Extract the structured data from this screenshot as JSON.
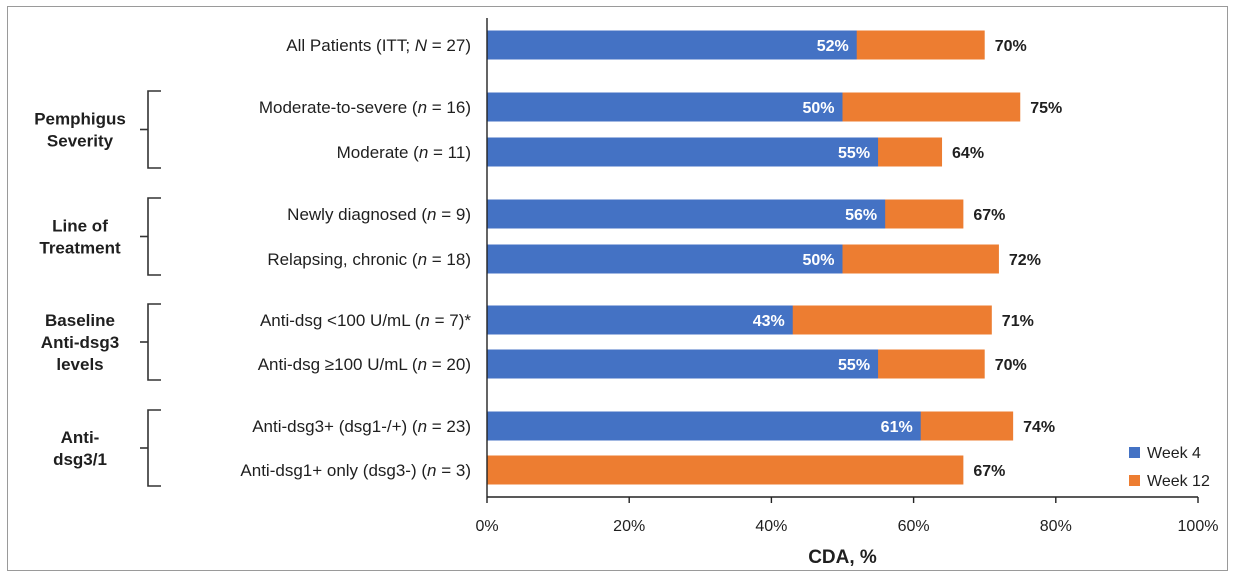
{
  "chart_data": {
    "type": "bar",
    "orientation": "horizontal",
    "xlabel": "CDA, %",
    "xlim": [
      0,
      100
    ],
    "xticks": [
      "0%",
      "20%",
      "40%",
      "60%",
      "80%",
      "100%"
    ],
    "legend_position": "bottom-right",
    "categories": [
      {
        "pre": "All Patients (ITT; ",
        "var": "N",
        "post": " = 27)"
      },
      {
        "pre": "Moderate-to-severe (",
        "var": "n",
        "post": " = 16)"
      },
      {
        "pre": "Moderate (",
        "var": "n",
        "post": " = 11)"
      },
      {
        "pre": "Newly diagnosed (",
        "var": "n",
        "post": " = 9)"
      },
      {
        "pre": "Relapsing, chronic (",
        "var": "n",
        "post": " = 18)"
      },
      {
        "pre": "Anti-dsg <100 U/mL (",
        "var": "n",
        "post": " = 7)*"
      },
      {
        "pre": "Anti-dsg ≥100 U/mL (",
        "var": "n",
        "post": " = 20)"
      },
      {
        "pre": "Anti-dsg3+ (dsg1-/+) (",
        "var": "n",
        "post": " = 23)"
      },
      {
        "pre": "Anti-dsg1+ only (dsg3-) (",
        "var": "n",
        "post": " = 3)"
      }
    ],
    "groups": [
      {
        "lines": [
          "Pemphigus",
          "Severity"
        ],
        "rows": [
          1,
          2
        ]
      },
      {
        "lines": [
          "Line of",
          "Treatment"
        ],
        "rows": [
          3,
          4
        ]
      },
      {
        "lines": [
          "Baseline",
          "Anti-dsg3",
          "levels"
        ],
        "rows": [
          5,
          6
        ]
      },
      {
        "lines": [
          "Anti-",
          "dsg3/1"
        ],
        "rows": [
          7,
          8
        ]
      }
    ],
    "series": [
      {
        "name": "Week 4",
        "color": "#4472C4",
        "values": [
          52,
          50,
          55,
          56,
          50,
          43,
          55,
          61,
          0
        ],
        "labels": [
          "52%",
          "50%",
          "55%",
          "56%",
          "50%",
          "43%",
          "55%",
          "61%",
          ""
        ]
      },
      {
        "name": "Week 12",
        "color": "#ED7D31",
        "values": [
          70,
          75,
          64,
          67,
          72,
          71,
          70,
          74,
          67
        ],
        "labels": [
          "70%",
          "75%",
          "64%",
          "67%",
          "72%",
          "71%",
          "70%",
          "74%",
          "67%"
        ]
      }
    ]
  }
}
